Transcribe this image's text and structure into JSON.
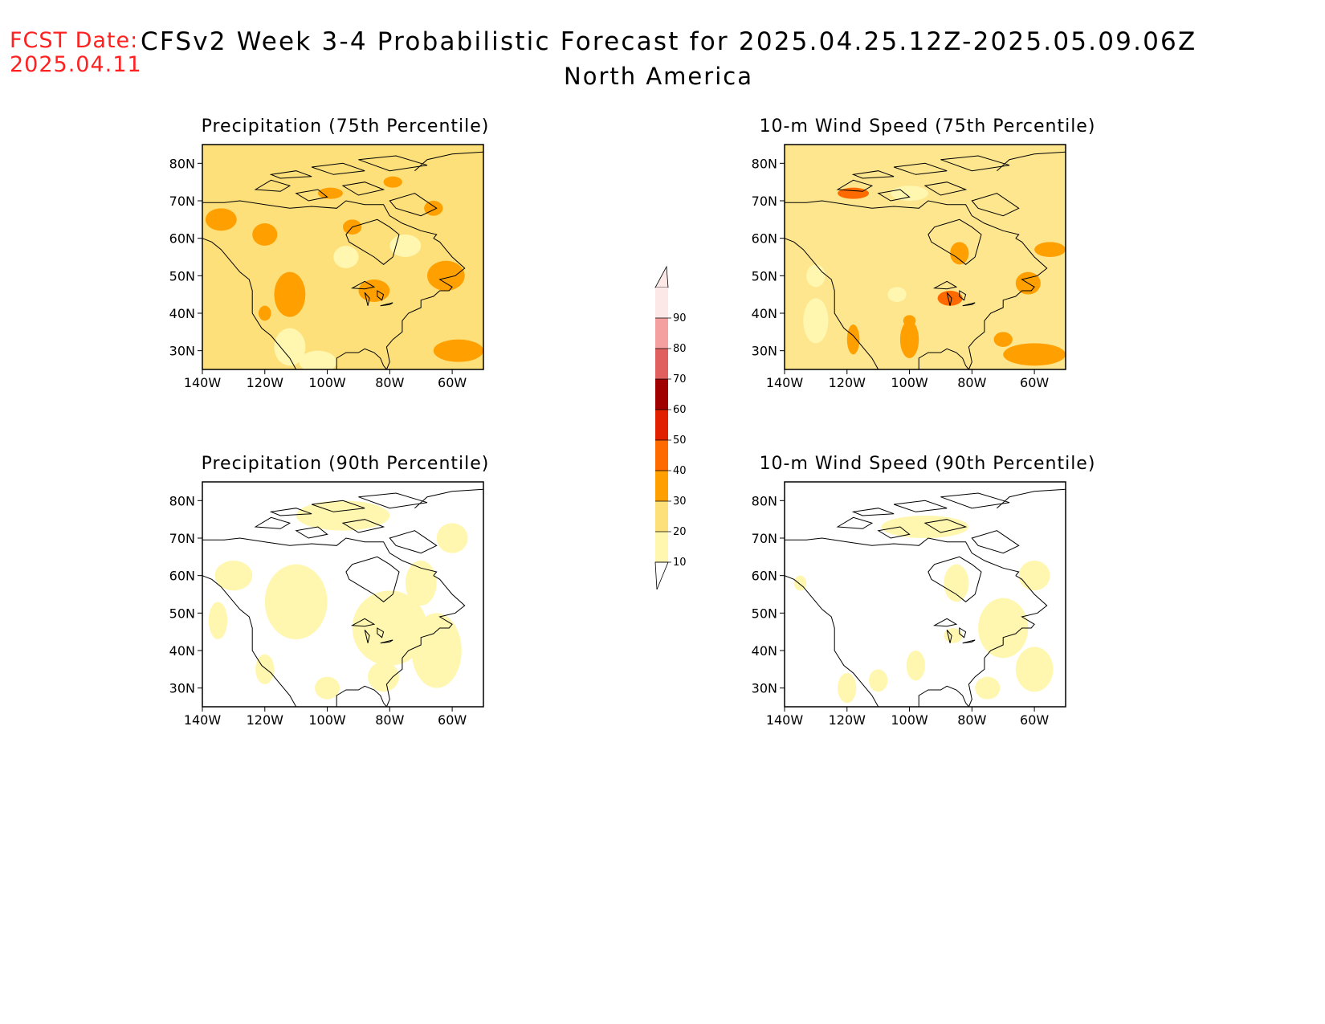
{
  "header": {
    "fcst_label": "FCST Date:",
    "fcst_date": "2025.04.11",
    "title": "CFSv2 Week 3-4 Probabilistic Forecast for 2025.04.25.12Z-2025.05.09.06Z",
    "subtitle": "North America"
  },
  "axes": {
    "lat_ticks": [
      "80N",
      "70N",
      "60N",
      "50N",
      "40N",
      "30N"
    ],
    "lon_ticks": [
      "140W",
      "120W",
      "100W",
      "80W",
      "60W"
    ]
  },
  "panels": [
    {
      "id": "precip-75",
      "title": "Precipitation (75th Percentile)",
      "base_color": "#fde07a"
    },
    {
      "id": "wind-75",
      "title": "10-m Wind Speed (75th Percentile)",
      "base_color": "#fee68f"
    },
    {
      "id": "precip-90",
      "title": "Precipitation (90th Percentile)",
      "base_color": "#ffffff"
    },
    {
      "id": "wind-90",
      "title": "10-m Wind Speed (90th Percentile)",
      "base_color": "#ffffff"
    }
  ],
  "colorbar": {
    "labels": [
      "90",
      "80",
      "70",
      "60",
      "50",
      "40",
      "30",
      "20",
      "10"
    ],
    "colors": [
      "#fde8e8",
      "#f5a0a0",
      "#e06060",
      "#a00000",
      "#e02000",
      "#ff6a00",
      "#ffa000",
      "#fde07a",
      "#fff7b0"
    ]
  }
}
